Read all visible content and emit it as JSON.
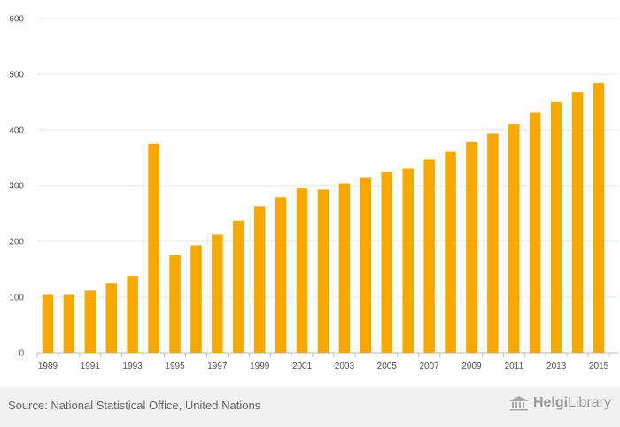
{
  "chart_data": {
    "type": "bar",
    "title": "",
    "xlabel": "",
    "ylabel": "",
    "ylim": [
      0,
      600
    ],
    "yticks": [
      0,
      100,
      200,
      300,
      400,
      500,
      600
    ],
    "categories": [
      1989,
      1990,
      1991,
      1992,
      1993,
      1994,
      1995,
      1996,
      1997,
      1998,
      1999,
      2000,
      2001,
      2002,
      2003,
      2004,
      2005,
      2006,
      2007,
      2008,
      2009,
      2010,
      2011,
      2012,
      2013,
      2014,
      2015
    ],
    "xtick_labels": [
      "1989",
      "1991",
      "1993",
      "1995",
      "1997",
      "1999",
      "2001",
      "2003",
      "2005",
      "2007",
      "2009",
      "2011",
      "2013",
      "2015"
    ],
    "series": [
      {
        "name": "Value",
        "color": "#f5a800",
        "values": [
          104,
          104,
          112,
          125,
          138,
          375,
          175,
          193,
          212,
          237,
          263,
          279,
          295,
          293,
          304,
          315,
          325,
          331,
          347,
          361,
          378,
          393,
          411,
          431,
          451,
          468,
          484
        ]
      }
    ],
    "grid": true,
    "legend": "none"
  },
  "footer": {
    "source": "Source: National Statistical Office, United Nations",
    "brand_part1": "Helgi",
    "brand_part2": "Library",
    "brand_icon": "library-building-icon"
  }
}
